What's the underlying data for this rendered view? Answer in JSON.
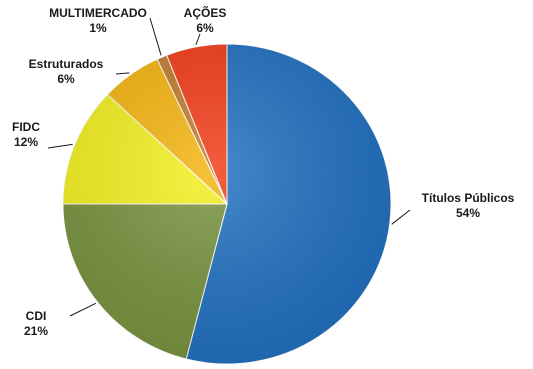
{
  "chart_data": {
    "type": "pie",
    "title": "",
    "unit": "%",
    "slices": [
      {
        "label": "Títulos Públicos",
        "value": 54,
        "value_text": "54%",
        "color": "#1f6fc0"
      },
      {
        "label": "CDI",
        "value": 21,
        "value_text": "21%",
        "color": "#76923c"
      },
      {
        "label": "FIDC",
        "value": 12,
        "value_text": "12%",
        "color": "#f3f01e"
      },
      {
        "label": "Estruturados",
        "value": 6,
        "value_text": "6%",
        "color": "#f5b40d"
      },
      {
        "label": "MULTIMERCADO",
        "value": 1,
        "value_text": "1%",
        "color": "#c07a2a"
      },
      {
        "label": "AÇÕES",
        "value": 6,
        "value_text": "6%",
        "color": "#f23a16"
      }
    ]
  }
}
